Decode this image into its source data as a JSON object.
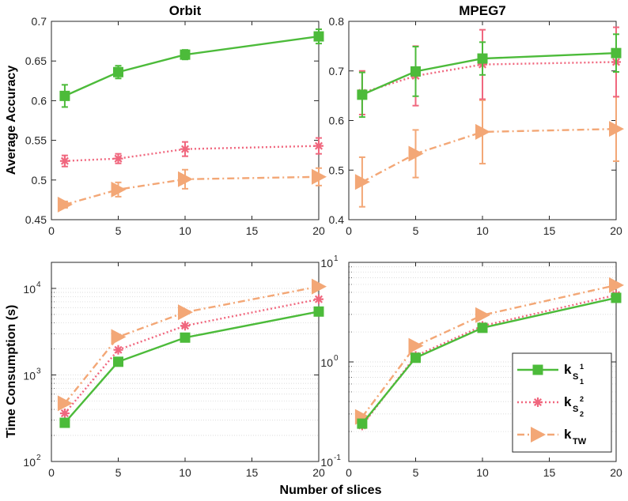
{
  "figure": {
    "ylabel_top": "Average Accuracy",
    "ylabel_bottom": "Time Consumption (s)",
    "xlabel": "Number of slices"
  },
  "legend": {
    "entries": [
      {
        "main": "k",
        "sub": "S",
        "subsub": "1",
        "sup": "1",
        "color": "#4cbb3a",
        "style": "solid",
        "marker": "square"
      },
      {
        "main": "k",
        "sub": "S",
        "subsub": "2",
        "sup": "2",
        "color": "#f0677e",
        "style": "dotted",
        "marker": "asterisk"
      },
      {
        "main": "k",
        "sub": "TW",
        "subsub": "",
        "sup": "",
        "color": "#f3a776",
        "style": "dashdot",
        "marker": "triangle-right"
      }
    ]
  },
  "chart_data": [
    {
      "type": "line",
      "title": "Orbit",
      "xlabel": "",
      "ylabel": "Average Accuracy",
      "yscale": "linear",
      "x": [
        1,
        5,
        10,
        20
      ],
      "xlim": [
        0,
        20
      ],
      "ylim": [
        0.45,
        0.7
      ],
      "xticks": [
        0,
        5,
        10,
        15,
        20
      ],
      "xtick_labels": [
        "0",
        "5",
        "10",
        "15",
        "20"
      ],
      "yticks": [
        0.45,
        0.5,
        0.55,
        0.6,
        0.65,
        0.7
      ],
      "ytick_labels": [
        "0.45",
        "0.5",
        "0.55",
        "0.6",
        "0.65",
        "0.7"
      ],
      "series": [
        {
          "name": "kS1",
          "values": [
            0.606,
            0.636,
            0.658,
            0.681
          ],
          "errors": [
            0.014,
            0.008,
            0.006,
            0.009
          ]
        },
        {
          "name": "kS2",
          "values": [
            0.524,
            0.527,
            0.539,
            0.543
          ],
          "errors": [
            0.007,
            0.006,
            0.009,
            0.01
          ]
        },
        {
          "name": "kTW",
          "values": [
            0.469,
            0.488,
            0.501,
            0.504
          ],
          "errors": [
            0.004,
            0.009,
            0.012,
            0.011
          ]
        }
      ]
    },
    {
      "type": "line",
      "title": "MPEG7",
      "xlabel": "",
      "ylabel": "",
      "yscale": "linear",
      "x": [
        1,
        5,
        10,
        20
      ],
      "xlim": [
        0,
        20
      ],
      "ylim": [
        0.4,
        0.8
      ],
      "xticks": [
        0,
        5,
        10,
        15,
        20
      ],
      "xtick_labels": [
        "0",
        "5",
        "10",
        "15",
        "20"
      ],
      "yticks": [
        0.4,
        0.5,
        0.6,
        0.7,
        0.8
      ],
      "ytick_labels": [
        "0.4",
        "0.5",
        "0.6",
        "0.7",
        "0.8"
      ],
      "series": [
        {
          "name": "kS1",
          "values": [
            0.652,
            0.699,
            0.725,
            0.736
          ],
          "errors": [
            0.045,
            0.05,
            0.033,
            0.038
          ]
        },
        {
          "name": "kS2",
          "values": [
            0.656,
            0.69,
            0.713,
            0.718
          ],
          "errors": [
            0.044,
            0.06,
            0.07,
            0.07
          ]
        },
        {
          "name": "kTW",
          "values": [
            0.476,
            0.533,
            0.577,
            0.583
          ],
          "errors": [
            0.05,
            0.048,
            0.064,
            0.065
          ]
        }
      ]
    },
    {
      "type": "line",
      "title": "",
      "xlabel": "Number of slices",
      "ylabel": "Time Consumption (s)",
      "yscale": "log",
      "x": [
        1,
        5,
        10,
        20
      ],
      "xlim": [
        0,
        20
      ],
      "ylim": [
        100,
        20000
      ],
      "xticks": [
        0,
        5,
        10,
        15,
        20
      ],
      "xtick_labels": [
        "0",
        "5",
        "10",
        "15",
        "20"
      ],
      "yticks": [
        100,
        1000,
        10000
      ],
      "ytick_bases": [
        "10",
        "10",
        "10"
      ],
      "ytick_exps": [
        "2",
        "3",
        "4"
      ],
      "series": [
        {
          "name": "kS1",
          "values": [
            280,
            1420,
            2700,
            5400
          ]
        },
        {
          "name": "kS2",
          "values": [
            360,
            1950,
            3700,
            7500
          ]
        },
        {
          "name": "kTW",
          "values": [
            470,
            2750,
            5300,
            10500
          ]
        }
      ]
    },
    {
      "type": "line",
      "title": "",
      "xlabel": "Number of slices",
      "ylabel": "",
      "yscale": "log",
      "x": [
        1,
        5,
        10,
        20
      ],
      "xlim": [
        0,
        20
      ],
      "ylim": [
        0.1,
        10
      ],
      "xticks": [
        0,
        5,
        10,
        15,
        20
      ],
      "xtick_labels": [
        "0",
        "5",
        "10",
        "15",
        "20"
      ],
      "yticks": [
        0.1,
        1,
        10
      ],
      "ytick_bases": [
        "10",
        "10",
        "10"
      ],
      "ytick_exps": [
        "-1",
        "0",
        "1"
      ],
      "series": [
        {
          "name": "kS1",
          "values": [
            0.24,
            1.1,
            2.2,
            4.4
          ]
        },
        {
          "name": "kS2",
          "values": [
            0.23,
            1.15,
            2.3,
            4.7
          ]
        },
        {
          "name": "kTW",
          "values": [
            0.28,
            1.45,
            2.95,
            5.9
          ]
        }
      ]
    }
  ]
}
